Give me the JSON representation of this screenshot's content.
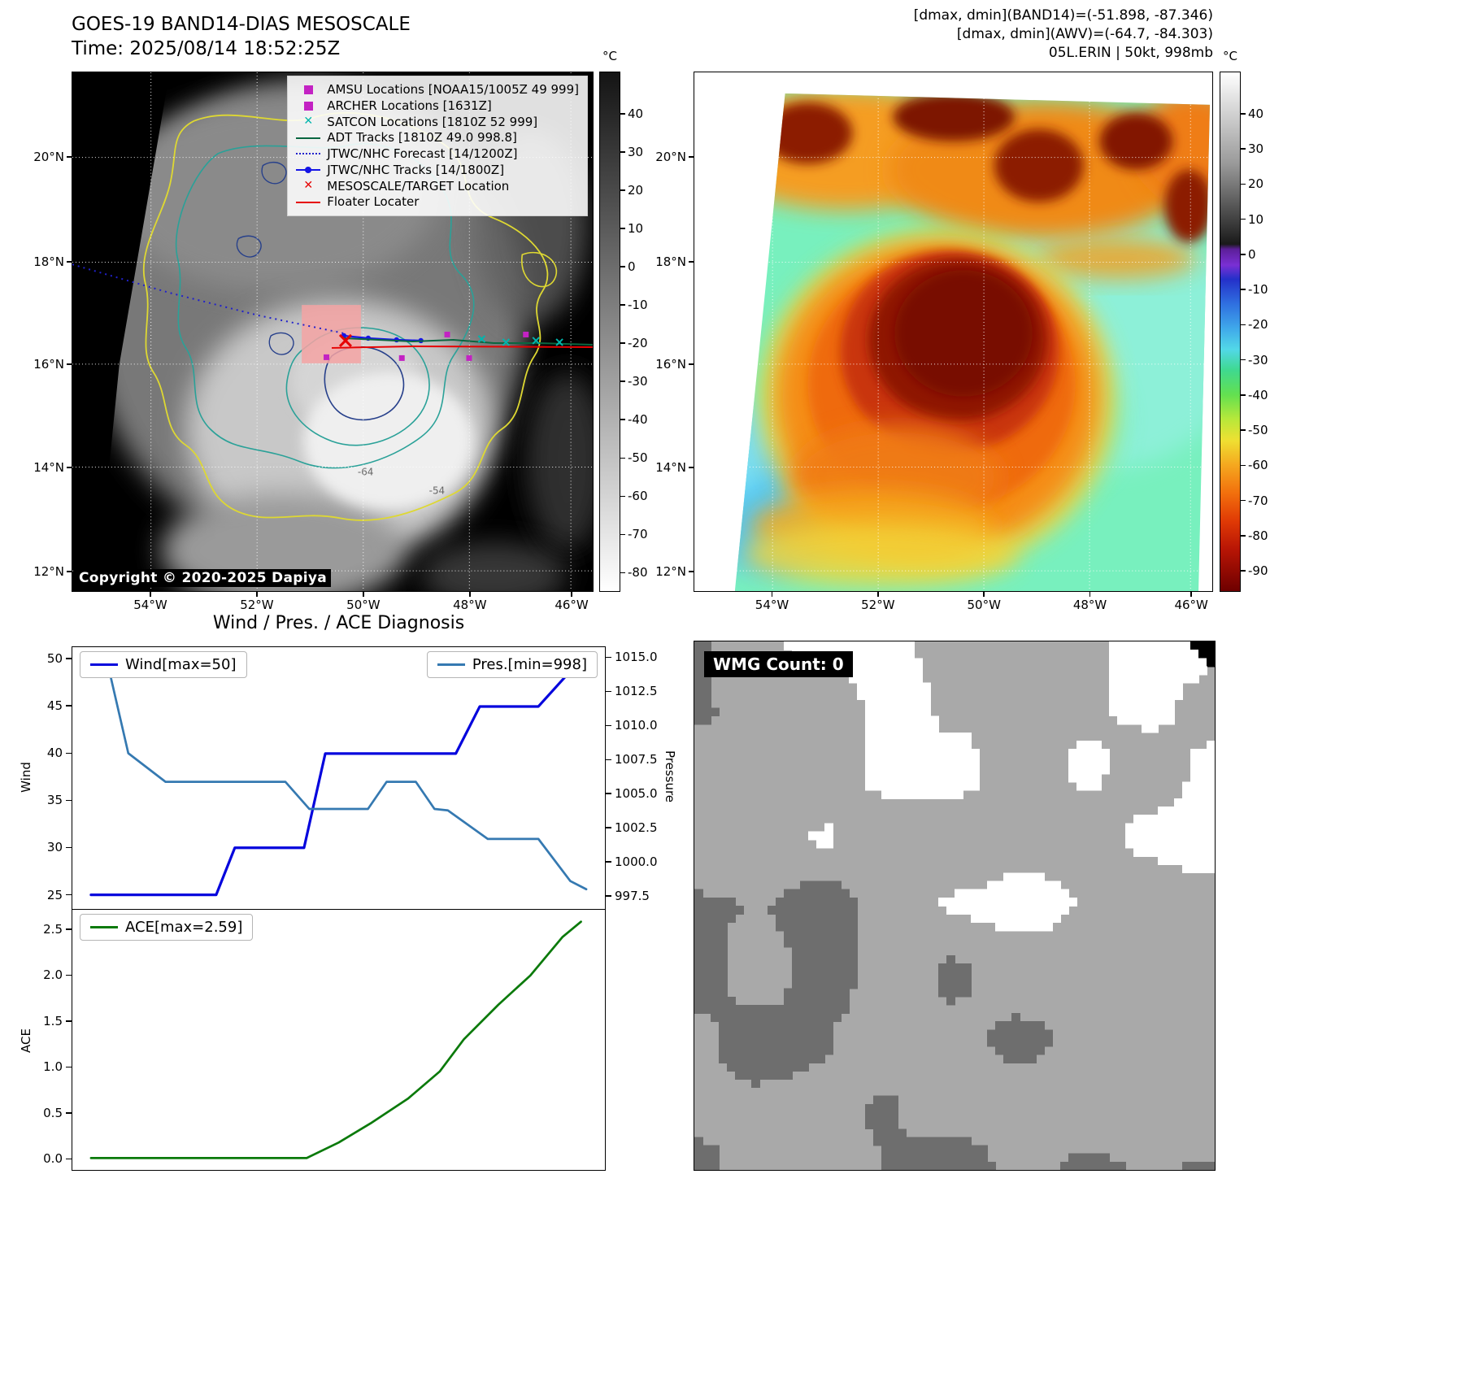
{
  "geo_axes": {
    "lat_labels": [
      "20°N",
      "18°N",
      "16°N",
      "14°N",
      "12°N"
    ],
    "lon_labels": [
      "54°W",
      "52°W",
      "50°W",
      "48°W",
      "46°W"
    ]
  },
  "bw_panel": {
    "title_line1": "GOES-19 BAND14-DIAS MESOSCALE",
    "title_line2": "Time: 2025/08/14 18:52:25Z",
    "copyright": "Copyright © 2020-2025 Dapiya",
    "contour_labels": {
      "inner": "-64",
      "outer": "-54"
    },
    "legend": [
      {
        "marker": "square",
        "color": "#c322c3",
        "label": "AMSU Locations [NOAA15/1005Z 49 999]"
      },
      {
        "marker": "square",
        "color": "#c322c3",
        "label": "ARCHER Locations [1631Z]"
      },
      {
        "marker": "x",
        "color": "#00b5ad",
        "label": "SATCON Locations [1810Z 52 999]"
      },
      {
        "marker": "line",
        "color": "#0a6640",
        "label": "ADT Tracks [1810Z 49.0 998.8]"
      },
      {
        "marker": "dotted",
        "color": "#2222cc",
        "label": "JTWC/NHC Forecast [14/1200Z]"
      },
      {
        "marker": "line-dot",
        "color": "#1515e6",
        "label": "JTWC/NHC Tracks [14/1800Z]"
      },
      {
        "marker": "x",
        "color": "#e60000",
        "label": "MESOSCALE/TARGET Location"
      },
      {
        "marker": "line",
        "color": "#e60000",
        "label": "Floater Locater"
      }
    ],
    "colorbar": {
      "unit": "°C",
      "ticks": [
        40,
        30,
        20,
        10,
        0,
        -10,
        -20,
        -30,
        -40,
        -50,
        -60,
        -70,
        -80
      ],
      "top_value": 51,
      "bottom_value": -85,
      "stops": [
        {
          "v": 51,
          "c": "#141414"
        },
        {
          "v": -85,
          "c": "#ffffff"
        }
      ]
    }
  },
  "color_panel": {
    "header_line1": "[dmax, dmin](BAND14)=(-51.898, -87.346)",
    "header_line2": "[dmax, dmin](AWV)=(-64.7, -84.303)",
    "header_line3": "05L.ERIN | 50kt, 998mb",
    "colorbar": {
      "unit": "°C",
      "ticks": [
        40,
        30,
        20,
        10,
        0,
        -10,
        -20,
        -30,
        -40,
        -50,
        -60,
        -70,
        -80,
        -90
      ],
      "top_value": 52,
      "bottom_value": -96,
      "stops": [
        {
          "v": 52,
          "c": "#ffffff"
        },
        {
          "v": 26,
          "c": "#9a9a9a"
        },
        {
          "v": 3,
          "c": "#1a1a1a"
        },
        {
          "v": 1.5,
          "c": "#5c1f99"
        },
        {
          "v": -3,
          "c": "#7a2fd4"
        },
        {
          "v": -7,
          "c": "#2430c9"
        },
        {
          "v": -14,
          "c": "#2f6fe0"
        },
        {
          "v": -21,
          "c": "#3fa8ea"
        },
        {
          "v": -27,
          "c": "#52d8e8"
        },
        {
          "v": -33,
          "c": "#3fd98f"
        },
        {
          "v": -40,
          "c": "#63e050"
        },
        {
          "v": -47,
          "c": "#b8e83a"
        },
        {
          "v": -53,
          "c": "#efe032"
        },
        {
          "v": -60,
          "c": "#f5a81f"
        },
        {
          "v": -68,
          "c": "#f2700d"
        },
        {
          "v": -76,
          "c": "#e03a05"
        },
        {
          "v": -84,
          "c": "#b81505"
        },
        {
          "v": -96,
          "c": "#6e0000"
        }
      ]
    }
  },
  "charts_panel": {
    "title": "Wind / Pres. / ACE Diagnosis"
  },
  "wmg_panel": {
    "label": "WMG Count: 0"
  },
  "chart_data": [
    {
      "type": "line",
      "title": "Wind / Pres. / ACE Diagnosis",
      "xlim": [
        0,
        1
      ],
      "ylabel_left": "Wind",
      "ylim_left": [
        23.5,
        51.3
      ],
      "yticks_left": [
        25,
        30,
        35,
        40,
        45,
        50
      ],
      "tick_decimals_left": 0,
      "ylabel_right": "Pressure",
      "ylim_right": [
        996.55,
        1015.8
      ],
      "yticks_right": [
        997.5,
        1000.0,
        1002.5,
        1005.0,
        1007.5,
        1010.0,
        1012.5,
        1015.0
      ],
      "tick_decimals_right": 1,
      "series": [
        {
          "name": "Wind[max=50]",
          "axis": "left",
          "color": "#0505dd",
          "x": [
            0.035,
            0.27,
            0.305,
            0.435,
            0.475,
            0.72,
            0.765,
            0.875,
            0.955,
            0.965
          ],
          "y": [
            25,
            25,
            30,
            30,
            40,
            40,
            45,
            45,
            50,
            50
          ]
        },
        {
          "name": "Pres.[min=998]",
          "axis": "right",
          "color": "#3579b1",
          "x": [
            0.035,
            0.065,
            0.105,
            0.175,
            0.4,
            0.445,
            0.555,
            0.59,
            0.645,
            0.68,
            0.705,
            0.78,
            0.875,
            0.935,
            0.965
          ],
          "y": [
            1015,
            1014.8,
            1008,
            1005.9,
            1005.9,
            1003.9,
            1003.9,
            1005.9,
            1005.9,
            1003.9,
            1003.8,
            1001.7,
            1001.7,
            998.6,
            998
          ]
        }
      ]
    },
    {
      "type": "line",
      "xlim": [
        0,
        1
      ],
      "ylabel_left": "ACE",
      "ylim_left": [
        -0.13,
        2.72
      ],
      "yticks_left": [
        0.0,
        0.5,
        1.0,
        1.5,
        2.0,
        2.5
      ],
      "tick_decimals_left": 1,
      "series": [
        {
          "name": "ACE[max=2.59]",
          "axis": "left",
          "color": "#0b7a0b",
          "x": [
            0.035,
            0.44,
            0.5,
            0.56,
            0.63,
            0.69,
            0.735,
            0.8,
            0.86,
            0.92,
            0.955
          ],
          "y": [
            0,
            0,
            0.17,
            0.38,
            0.65,
            0.95,
            1.3,
            1.68,
            2.0,
            2.42,
            2.59
          ]
        }
      ]
    }
  ]
}
